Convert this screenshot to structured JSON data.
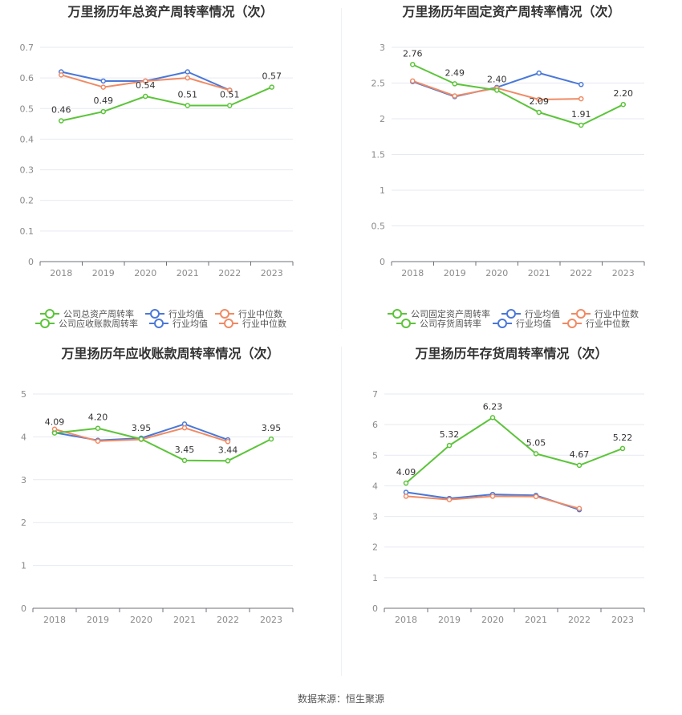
{
  "colors": {
    "company": "#5cc43a",
    "avg": "#4a78d8",
    "median": "#f08a64",
    "grid": "#e6e9f0",
    "axis": "#6e7079"
  },
  "legend": {
    "avg": "行业均值",
    "median": "行业中位数"
  },
  "source_text": "数据来源：恒生聚源",
  "chart_data": [
    {
      "type": "line",
      "title": "万里扬历年总资产周转率情况（次）",
      "categories": [
        "2018",
        "2019",
        "2020",
        "2021",
        "2022",
        "2023"
      ],
      "ylim": [
        0,
        0.7
      ],
      "yticks": [
        "0",
        "0.1",
        "0.2",
        "0.3",
        "0.4",
        "0.5",
        "0.6",
        "0.7"
      ],
      "grid": true,
      "legend_position": "bottom",
      "series": [
        {
          "name": "公司总资产周转率",
          "key": "company",
          "values": [
            0.46,
            0.49,
            0.54,
            0.51,
            0.51,
            0.57
          ],
          "labels": [
            "0.46",
            "0.49",
            "0.54",
            "0.51",
            "0.51",
            "0.57"
          ]
        },
        {
          "name": "行业均值",
          "key": "avg",
          "values": [
            0.62,
            0.59,
            0.59,
            0.62,
            0.56,
            null
          ]
        },
        {
          "name": "行业中位数",
          "key": "median",
          "values": [
            0.61,
            0.57,
            0.59,
            0.6,
            0.56,
            null
          ]
        }
      ]
    },
    {
      "type": "line",
      "title": "万里扬历年固定资产周转率情况（次）",
      "categories": [
        "2018",
        "2019",
        "2020",
        "2021",
        "2022",
        "2023"
      ],
      "ylim": [
        0,
        3
      ],
      "yticks": [
        "0",
        "0.5",
        "1",
        "1.5",
        "2",
        "2.5",
        "3"
      ],
      "grid": true,
      "legend_position": "bottom",
      "series": [
        {
          "name": "公司固定资产周转率",
          "key": "company",
          "values": [
            2.76,
            2.49,
            2.4,
            2.09,
            1.91,
            2.2
          ],
          "labels": [
            "2.76",
            "2.49",
            "2.40",
            "2.09",
            "1.91",
            "2.20"
          ]
        },
        {
          "name": "行业均值",
          "key": "avg",
          "values": [
            2.52,
            2.31,
            2.44,
            2.64,
            2.48,
            null
          ]
        },
        {
          "name": "行业中位数",
          "key": "median",
          "values": [
            2.53,
            2.32,
            2.43,
            2.27,
            2.28,
            null
          ]
        }
      ]
    },
    {
      "type": "line",
      "title": "万里扬历年应收账款周转率情况（次）",
      "categories": [
        "2018",
        "2019",
        "2020",
        "2021",
        "2022",
        "2023"
      ],
      "ylim": [
        0,
        5
      ],
      "yticks": [
        "0",
        "1",
        "2",
        "3",
        "4",
        "5"
      ],
      "grid": true,
      "legend_position": "bottom",
      "series": [
        {
          "name": "公司应收账款周转率",
          "key": "company",
          "values": [
            4.09,
            4.2,
            3.95,
            3.45,
            3.44,
            3.95
          ],
          "labels": [
            "4.09",
            "4.20",
            "3.95",
            "3.45",
            "3.44",
            "3.95"
          ]
        },
        {
          "name": "行业均值",
          "key": "avg",
          "values": [
            4.1,
            3.92,
            3.97,
            4.3,
            3.93,
            null
          ]
        },
        {
          "name": "行业中位数",
          "key": "median",
          "values": [
            4.18,
            3.9,
            3.94,
            4.21,
            3.89,
            null
          ]
        }
      ]
    },
    {
      "type": "line",
      "title": "万里扬历年存货周转率情况（次）",
      "categories": [
        "2018",
        "2019",
        "2020",
        "2021",
        "2022",
        "2023"
      ],
      "ylim": [
        0,
        7
      ],
      "yticks": [
        "0",
        "1",
        "2",
        "3",
        "4",
        "5",
        "6",
        "7"
      ],
      "grid": true,
      "legend_position": "bottom",
      "series": [
        {
          "name": "公司存货周转率",
          "key": "company",
          "values": [
            4.09,
            5.32,
            6.23,
            5.05,
            4.67,
            5.22
          ],
          "labels": [
            "4.09",
            "5.32",
            "6.23",
            "5.05",
            "4.67",
            "5.22"
          ]
        },
        {
          "name": "行业均值",
          "key": "avg",
          "values": [
            3.79,
            3.59,
            3.72,
            3.69,
            3.22,
            null
          ]
        },
        {
          "name": "行业中位数",
          "key": "median",
          "values": [
            3.66,
            3.55,
            3.66,
            3.65,
            3.26,
            null
          ]
        }
      ]
    }
  ]
}
